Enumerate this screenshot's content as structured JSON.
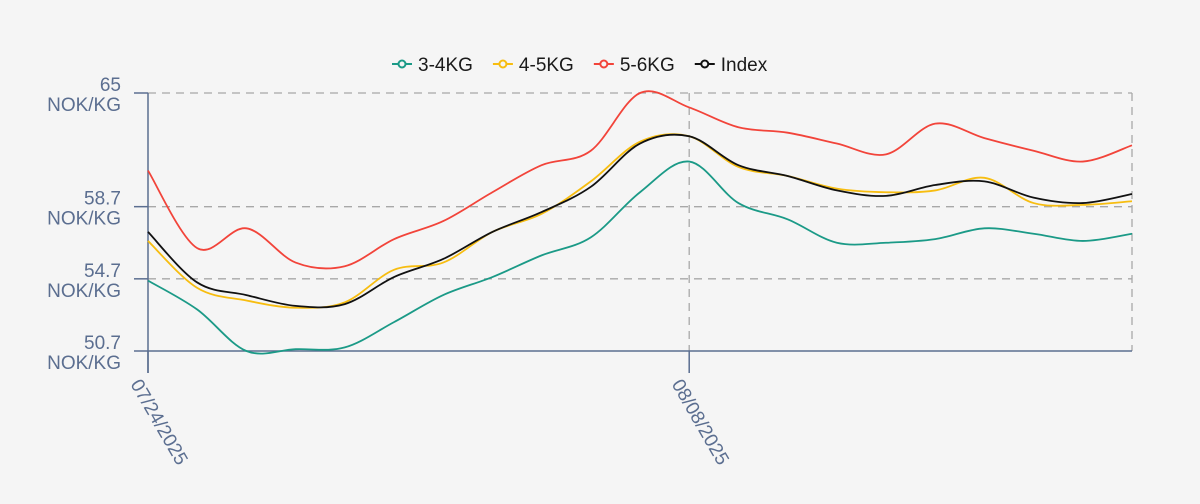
{
  "chart_data": {
    "type": "line",
    "title": "",
    "xlabel": "",
    "ylabel": "",
    "unit": "NOK/KG",
    "ylim": [
      50.7,
      65
    ],
    "y_ticks": [
      {
        "value": 65,
        "label": "65",
        "unit": "NOK/KG"
      },
      {
        "value": 58.7,
        "label": "58.7",
        "unit": "NOK/KG"
      },
      {
        "value": 54.7,
        "label": "54.7",
        "unit": "NOK/KG"
      },
      {
        "value": 50.7,
        "label": "50.7",
        "unit": "NOK/KG"
      }
    ],
    "x": [
      "07/24/2025",
      "07/25/2025",
      "07/28/2025",
      "07/29/2025",
      "07/30/2025",
      "07/31/2025",
      "08/01/2025",
      "08/04/2025",
      "08/05/2025",
      "08/06/2025",
      "08/07/2025",
      "08/08/2025",
      "08/11/2025",
      "08/12/2025",
      "08/13/2025",
      "08/14/2025",
      "08/15/2025",
      "08/18/2025",
      "08/19/2025",
      "08/20/2025",
      "08/21/2025"
    ],
    "x_ticks": [
      {
        "index": 0,
        "label": "07/24/2025"
      },
      {
        "index": 11,
        "label": "08/08/2025"
      }
    ],
    "grid": true,
    "smooth": true,
    "legend_position": "top",
    "series": [
      {
        "name": "3-4KG",
        "color": "#1b9a87",
        "values": [
          54.6,
          53.0,
          50.7,
          50.8,
          50.9,
          52.3,
          53.8,
          54.8,
          56.0,
          57.0,
          59.5,
          61.2,
          58.9,
          58.0,
          56.7,
          56.7,
          56.9,
          57.5,
          57.2,
          56.8,
          57.2
        ]
      },
      {
        "name": "4-5KG",
        "color": "#f7bd10",
        "values": [
          56.8,
          54.2,
          53.5,
          53.1,
          53.4,
          55.2,
          55.6,
          57.3,
          58.3,
          60.1,
          62.3,
          62.6,
          60.9,
          60.4,
          59.7,
          59.5,
          59.6,
          60.3,
          58.9,
          58.8,
          59.0
        ]
      },
      {
        "name": "5-6KG",
        "color": "#f2443a",
        "values": [
          60.7,
          56.4,
          57.5,
          55.6,
          55.4,
          56.9,
          57.9,
          59.5,
          61.0,
          61.8,
          65.0,
          64.2,
          63.1,
          62.8,
          62.2,
          61.6,
          63.3,
          62.5,
          61.8,
          61.2,
          62.1
        ]
      },
      {
        "name": "Index",
        "color": "#111111",
        "values": [
          57.3,
          54.5,
          53.8,
          53.2,
          53.3,
          54.8,
          55.8,
          57.3,
          58.4,
          59.8,
          62.2,
          62.6,
          61.0,
          60.4,
          59.6,
          59.3,
          59.9,
          60.1,
          59.2,
          58.9,
          59.4
        ]
      }
    ]
  }
}
